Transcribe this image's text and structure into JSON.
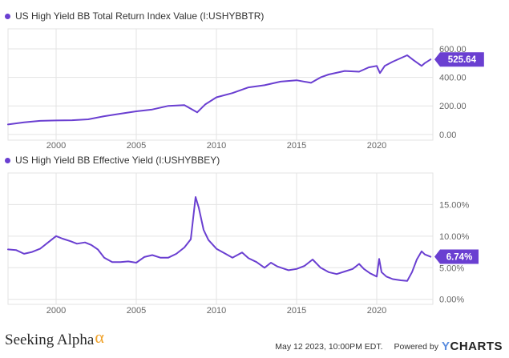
{
  "colors": {
    "line": "#6a3fd1",
    "grid": "#e3e3e3",
    "axis_text": "#666666"
  },
  "chart_data": [
    {
      "type": "line",
      "title": "US High Yield BB Total Return Index Value (I:USHYBBTR)",
      "series": [
        {
          "name": "US High Yield BB Total Return Index Value (I:USHYBBTR)",
          "last_value_label": "525.64"
        }
      ],
      "x": [
        1997.0,
        1998.0,
        1999.0,
        2000.0,
        2001.0,
        2002.0,
        2003.0,
        2004.0,
        2005.0,
        2006.0,
        2007.0,
        2008.0,
        2008.8,
        2009.3,
        2010.0,
        2011.0,
        2012.0,
        2013.0,
        2014.0,
        2015.0,
        2015.9,
        2016.5,
        2017.0,
        2018.0,
        2018.9,
        2019.5,
        2020.0,
        2020.2,
        2020.5,
        2021.0,
        2021.9,
        2022.3,
        2022.8,
        2023.0,
        2023.36
      ],
      "values": [
        70,
        85,
        95,
        98,
        100,
        106,
        128,
        145,
        162,
        175,
        200,
        205,
        155,
        210,
        260,
        290,
        330,
        345,
        370,
        380,
        362,
        400,
        420,
        445,
        440,
        470,
        480,
        430,
        480,
        510,
        555,
        520,
        480,
        500,
        525.64
      ],
      "yticks": [
        0,
        200,
        400,
        600
      ],
      "ytick_labels": [
        "0.00",
        "200.00",
        "400.00",
        "600.00"
      ],
      "ylim": [
        -40,
        740
      ],
      "xticks": [
        2000,
        2005,
        2010,
        2015,
        2020
      ],
      "xtick_labels": [
        "2000",
        "2005",
        "2010",
        "2015",
        "2020"
      ],
      "xlim": [
        1997.0,
        2023.5
      ]
    },
    {
      "type": "line",
      "title": "US High Yield BB Effective Yield (I:USHYBBEY)",
      "series": [
        {
          "name": "US High Yield BB Effective Yield (I:USHYBBEY)",
          "last_value_label": "6.74%"
        }
      ],
      "x": [
        1997.0,
        1997.5,
        1998.0,
        1998.5,
        1999.0,
        1999.5,
        2000.0,
        2000.4,
        2000.9,
        2001.3,
        2001.8,
        2002.2,
        2002.6,
        2003.0,
        2003.5,
        2004.0,
        2004.5,
        2005.0,
        2005.5,
        2006.0,
        2006.5,
        2007.0,
        2007.5,
        2008.0,
        2008.4,
        2008.7,
        2008.9,
        2009.2,
        2009.5,
        2010.0,
        2010.5,
        2011.0,
        2011.6,
        2012.0,
        2012.5,
        2013.0,
        2013.4,
        2013.8,
        2014.5,
        2015.0,
        2015.5,
        2016.0,
        2016.5,
        2017.0,
        2017.5,
        2018.0,
        2018.5,
        2018.9,
        2019.2,
        2019.6,
        2020.0,
        2020.15,
        2020.3,
        2020.6,
        2021.0,
        2021.5,
        2021.9,
        2022.2,
        2022.5,
        2022.8,
        2023.0,
        2023.36
      ],
      "values": [
        7.9,
        7.8,
        7.2,
        7.5,
        8.0,
        9.0,
        10.0,
        9.6,
        9.2,
        8.8,
        9.0,
        8.6,
        7.9,
        6.6,
        5.9,
        5.9,
        6.0,
        5.8,
        6.7,
        7.0,
        6.6,
        6.6,
        7.2,
        8.2,
        9.5,
        16.2,
        14.5,
        11.0,
        9.4,
        8.0,
        7.3,
        6.6,
        7.4,
        6.5,
        5.9,
        5.0,
        5.8,
        5.2,
        4.6,
        4.8,
        5.3,
        6.3,
        5.0,
        4.3,
        4.0,
        4.4,
        4.8,
        5.6,
        4.8,
        4.1,
        3.6,
        6.4,
        4.3,
        3.6,
        3.2,
        3.0,
        2.9,
        4.3,
        6.3,
        7.6,
        7.1,
        6.74
      ],
      "yticks": [
        0,
        5,
        10,
        15
      ],
      "ytick_labels": [
        "0.00%",
        "5.00%",
        "10.00%",
        "15.00%"
      ],
      "ylim": [
        -0.8,
        20.0
      ],
      "xticks": [
        2000,
        2005,
        2010,
        2015,
        2020
      ],
      "xtick_labels": [
        "2000",
        "2005",
        "2010",
        "2015",
        "2020"
      ],
      "xlim": [
        1997.0,
        2023.5
      ]
    }
  ],
  "footer": {
    "brand": "Seeking Alpha",
    "brand_symbol": "α",
    "timestamp": "May 12 2023, 10:00PM EDT.",
    "powered_by": "Powered by",
    "ycharts_y": "Y",
    "ycharts_rest": "CHARTS"
  }
}
